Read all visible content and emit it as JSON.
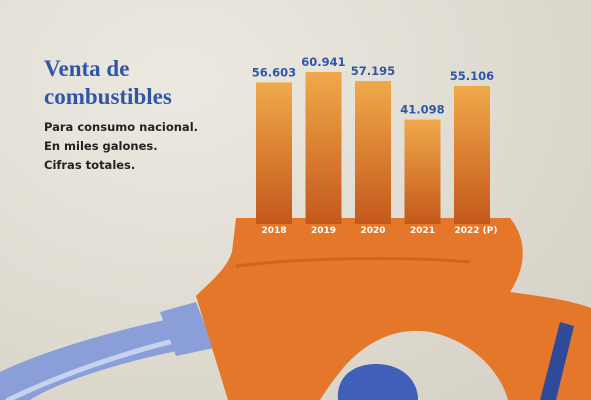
{
  "colors": {
    "bar_top": "#f0a94a",
    "bar_bottom": "#c4581b",
    "nozzle": "#e5772a",
    "hose": "#8a9fd8",
    "title": "#2f57a6",
    "value_label": "#2f57a6"
  },
  "header": {
    "title": "Venta de combustibles",
    "subtitle_lines": [
      "Para consumo nacional.",
      "En miles galones.",
      "Cifras totales."
    ]
  },
  "chart_data": {
    "type": "bar",
    "title": "Venta de combustibles",
    "subtitle": "Para consumo nacional. En miles galones. Cifras totales.",
    "categories": [
      "2018",
      "2019",
      "2020",
      "2021",
      "2022 (P)"
    ],
    "values": [
      56603,
      60941,
      57195,
      41098,
      55106
    ],
    "value_labels": [
      "56.603",
      "60.941",
      "57.195",
      "41.098",
      "55.106"
    ],
    "units": "miles de galones",
    "grid": false,
    "legend": "none"
  }
}
